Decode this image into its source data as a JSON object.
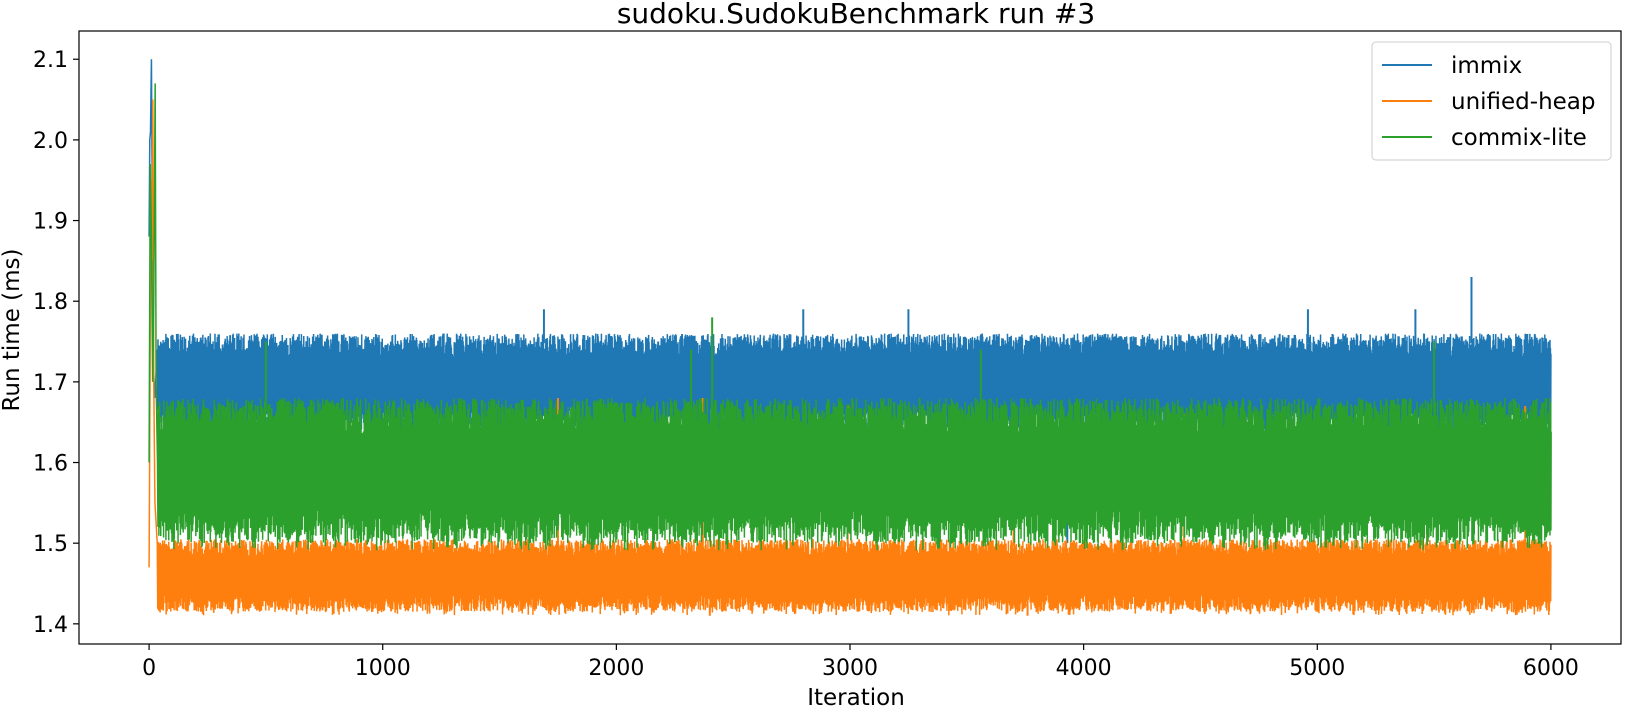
{
  "chart_data": {
    "type": "line",
    "title": "sudoku.SudokuBenchmark run #3",
    "xlabel": "Iteration",
    "ylabel": "Run time (ms)",
    "xlim": [
      -300,
      6300
    ],
    "ylim": [
      1.375,
      2.135
    ],
    "xticks": [
      0,
      1000,
      2000,
      3000,
      4000,
      5000,
      6000
    ],
    "yticks": [
      1.4,
      1.5,
      1.6,
      1.7,
      1.8,
      1.9,
      2.0,
      2.1
    ],
    "xtick_labels": [
      "0",
      "1000",
      "2000",
      "3000",
      "4000",
      "5000",
      "6000"
    ],
    "ytick_labels": [
      "1.4",
      "1.5",
      "1.6",
      "1.7",
      "1.8",
      "1.9",
      "2.0",
      "2.1"
    ],
    "grid": false,
    "legend_position": "top-right",
    "n_iterations": 6000,
    "series": [
      {
        "name": "immix",
        "color": "#1f77b4",
        "warmup": [
          [
            0,
            1.88
          ],
          [
            3,
            2.0
          ],
          [
            6,
            2.01
          ],
          [
            10,
            2.1
          ],
          [
            14,
            1.9
          ],
          [
            18,
            1.72
          ],
          [
            25,
            1.68
          ],
          [
            35,
            1.74
          ]
        ],
        "band_low": 1.64,
        "band_high": 1.76,
        "spikes": [
          [
            5660,
            1.83
          ],
          [
            1690,
            1.79
          ],
          [
            2800,
            1.79
          ],
          [
            3250,
            1.79
          ],
          [
            4960,
            1.79
          ],
          [
            5420,
            1.79
          ]
        ],
        "dips": [
          [
            1215,
            1.51
          ],
          [
            3930,
            1.5
          ]
        ]
      },
      {
        "name": "unified-heap",
        "color": "#ff7f0e",
        "warmup": [
          [
            0,
            1.47
          ],
          [
            4,
            1.7
          ],
          [
            8,
            1.95
          ],
          [
            12,
            1.85
          ],
          [
            16,
            2.05
          ],
          [
            20,
            1.7
          ],
          [
            25,
            1.55
          ],
          [
            35,
            1.5
          ]
        ],
        "band_low": 1.415,
        "band_high": 1.505,
        "spikes": [
          [
            1750,
            1.68
          ],
          [
            2370,
            1.68
          ],
          [
            2990,
            1.67
          ],
          [
            3700,
            1.67
          ],
          [
            4430,
            1.66
          ],
          [
            5470,
            1.66
          ],
          [
            5890,
            1.67
          ]
        ],
        "dips": [
          [
            2400,
            1.41
          ],
          [
            3760,
            1.41
          ]
        ]
      },
      {
        "name": "commix-lite",
        "color": "#2ca02c",
        "warmup": [
          [
            0,
            1.6
          ],
          [
            5,
            1.97
          ],
          [
            10,
            1.88
          ],
          [
            15,
            1.7
          ],
          [
            20,
            1.8
          ],
          [
            26,
            2.07
          ],
          [
            30,
            1.7
          ],
          [
            36,
            1.6
          ]
        ],
        "band_low": 1.5,
        "band_high": 1.68,
        "spikes": [
          [
            2410,
            1.78
          ],
          [
            500,
            1.75
          ],
          [
            2320,
            1.74
          ],
          [
            3560,
            1.74
          ],
          [
            5500,
            1.75
          ]
        ],
        "dips": []
      }
    ]
  }
}
